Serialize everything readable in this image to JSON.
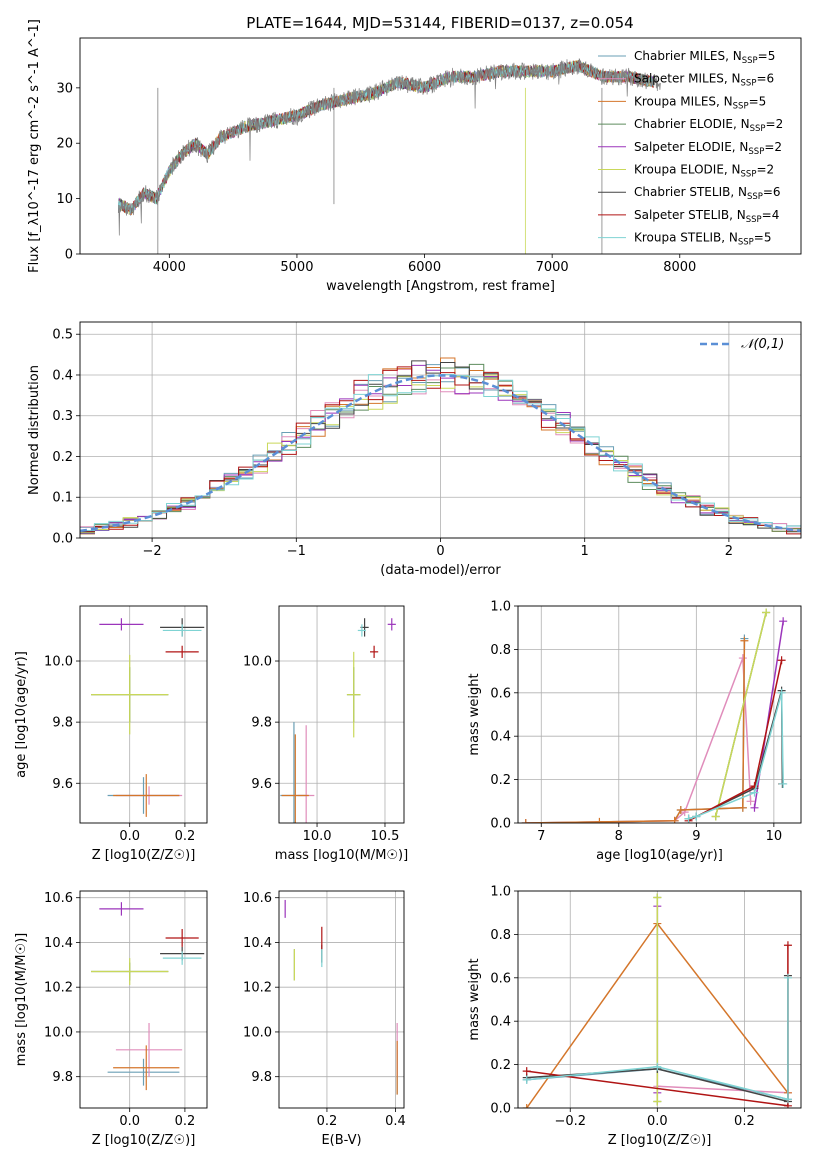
{
  "title": "PLATE=1644, MJD=53144, FIBERID=0137, z=0.054",
  "colors": {
    "Chabrier MILES": "#6a9fb5",
    "Salpeter MILES": "#e08dbb",
    "Kroupa MILES": "#d4762b",
    "Chabrier ELODIE": "#5d8c5d",
    "Salpeter ELODIE": "#9b35bb",
    "Kroupa ELODIE": "#c9d85a",
    "Chabrier STELIB": "#444444",
    "Salpeter STELIB": "#b01414",
    "Kroupa STELIB": "#7fd3d3"
  },
  "chart_data": [
    {
      "id": "spectrum",
      "type": "line",
      "xlabel": "wavelength [Angstrom, rest frame]",
      "ylabel": "Flux [f_λ10^-17 erg cm^-2 s^-1 A^-1]",
      "xlim": [
        3300,
        8950
      ],
      "ylim": [
        0,
        39
      ],
      "xticks": [
        4000,
        5000,
        6000,
        7000,
        8000
      ],
      "yticks": [
        0,
        10,
        20,
        30
      ],
      "legend_loc": "upper-right",
      "observed": {
        "x": [
          3600,
          3700,
          3800,
          3900,
          4000,
          4100,
          4200,
          4300,
          4400,
          4500,
          4600,
          4800,
          5000,
          5200,
          5400,
          5600,
          5800,
          6000,
          6200,
          6400,
          6600,
          6800,
          7000,
          7200,
          7300,
          7400,
          7600,
          7800
        ],
        "y": [
          9,
          8,
          11,
          10,
          15,
          18,
          20,
          18,
          21,
          22,
          23,
          24,
          25,
          27,
          28,
          29,
          31,
          30,
          32,
          32,
          33,
          33,
          33,
          34,
          33,
          32,
          32,
          31
        ]
      },
      "legend": [
        {
          "label": "Chabrier MILES",
          "nssp": "5"
        },
        {
          "label": "Salpeter MILES",
          "nssp": "6"
        },
        {
          "label": "Kroupa MILES",
          "nssp": "5"
        },
        {
          "label": "Chabrier ELODIE",
          "nssp": "2"
        },
        {
          "label": "Salpeter ELODIE",
          "nssp": "2"
        },
        {
          "label": "Kroupa ELODIE",
          "nssp": "2"
        },
        {
          "label": "Chabrier STELIB",
          "nssp": "6"
        },
        {
          "label": "Salpeter STELIB",
          "nssp": "4"
        },
        {
          "label": "Kroupa STELIB",
          "nssp": "5"
        }
      ]
    },
    {
      "id": "residuals",
      "type": "step",
      "xlabel": "(data-model)/error",
      "ylabel": "Normed distribution",
      "xlim": [
        -2.5,
        2.5
      ],
      "ylim": [
        0,
        0.53
      ],
      "xticks": [
        -2,
        -1,
        0,
        1,
        2
      ],
      "yticks": [
        0.0,
        0.1,
        0.2,
        0.3,
        0.4,
        0.5
      ],
      "grid": true,
      "bin_width": 0.1,
      "reference_label": "𝒩(0,1)"
    },
    {
      "id": "age-vs-Z",
      "type": "errorbar",
      "xlabel": "Z [log10(Z/Z☉)]",
      "ylabel": "age [log10(age/yr)]",
      "xlim": [
        -0.18,
        0.28
      ],
      "ylim": [
        9.47,
        10.18
      ],
      "xticks": [
        0.0,
        0.2
      ],
      "yticks": [
        9.6,
        9.8,
        10.0
      ],
      "grid": true,
      "points": [
        {
          "name": "Chabrier MILES",
          "x": 0.05,
          "xerr": 0.13,
          "y": 9.56,
          "yerr": 0.06
        },
        {
          "name": "Salpeter MILES",
          "x": 0.07,
          "xerr": 0.12,
          "y": 9.56,
          "yerr": 0.03
        },
        {
          "name": "Kroupa MILES",
          "x": 0.06,
          "xerr": 0.12,
          "y": 9.56,
          "yerr": 0.07
        },
        {
          "name": "Chabrier ELODIE",
          "x": 0.0,
          "xerr": 0.14,
          "y": 9.89,
          "yerr": 0.09
        },
        {
          "name": "Salpeter ELODIE",
          "x": -0.03,
          "xerr": 0.08,
          "y": 10.12,
          "yerr": 0.02
        },
        {
          "name": "Kroupa ELODIE",
          "x": 0.0,
          "xerr": 0.14,
          "y": 9.89,
          "yerr": 0.13
        },
        {
          "name": "Chabrier STELIB",
          "x": 0.19,
          "xerr": 0.08,
          "y": 10.11,
          "yerr": 0.03
        },
        {
          "name": "Salpeter STELIB",
          "x": 0.19,
          "xerr": 0.06,
          "y": 10.03,
          "yerr": 0.02
        },
        {
          "name": "Kroupa STELIB",
          "x": 0.19,
          "xerr": 0.07,
          "y": 10.1,
          "yerr": 0.02
        }
      ]
    },
    {
      "id": "age-vs-mass",
      "type": "errorbar",
      "xlabel": "mass [log10(M/M☉)]",
      "ylabel": "",
      "xlim": [
        9.72,
        10.64
      ],
      "ylim": [
        9.47,
        10.18
      ],
      "xticks": [
        10.0,
        10.5
      ],
      "yticks": [
        9.6,
        9.8,
        10.0
      ],
      "grid": true,
      "points": [
        {
          "name": "Chabrier MILES",
          "x": 9.83,
          "xerr": 0.1,
          "y": 9.56,
          "yerr": 0.24
        },
        {
          "name": "Salpeter MILES",
          "x": 9.92,
          "xerr": 0.06,
          "y": 9.56,
          "yerr": 0.23
        },
        {
          "name": "Kroupa MILES",
          "x": 9.84,
          "xerr": 0.1,
          "y": 9.56,
          "yerr": 0.2
        },
        {
          "name": "Chabrier ELODIE",
          "x": 10.27,
          "xerr": 0.05,
          "y": 9.89,
          "yerr": 0.09
        },
        {
          "name": "Salpeter ELODIE",
          "x": 10.55,
          "xerr": 0.03,
          "y": 10.12,
          "yerr": 0.02
        },
        {
          "name": "Kroupa ELODIE",
          "x": 10.27,
          "xerr": 0.05,
          "y": 9.89,
          "yerr": 0.14
        },
        {
          "name": "Chabrier STELIB",
          "x": 10.35,
          "xerr": 0.03,
          "y": 10.11,
          "yerr": 0.03
        },
        {
          "name": "Salpeter STELIB",
          "x": 10.42,
          "xerr": 0.03,
          "y": 10.03,
          "yerr": 0.02
        },
        {
          "name": "Kroupa STELIB",
          "x": 10.33,
          "xerr": 0.03,
          "y": 10.1,
          "yerr": 0.02
        }
      ]
    },
    {
      "id": "mass-weight-vs-age",
      "type": "line",
      "xlabel": "age [log10(age/yr)]",
      "ylabel": "mass weight",
      "xlim": [
        6.7,
        10.35
      ],
      "ylim": [
        0,
        1
      ],
      "xticks": [
        7,
        8,
        9,
        10
      ],
      "yticks": [
        0.0,
        0.2,
        0.4,
        0.6,
        0.8,
        1.0
      ],
      "grid": true,
      "series": [
        {
          "name": "Chabrier MILES",
          "x": [
            6.8,
            8.72,
            8.8,
            9.6,
            9.62
          ],
          "y": [
            0.0,
            0.01,
            0.06,
            0.07,
            0.85
          ]
        },
        {
          "name": "Salpeter MILES",
          "x": [
            6.8,
            8.72,
            8.85,
            9.6,
            9.7
          ],
          "y": [
            0.0,
            0.01,
            0.05,
            0.76,
            0.1
          ]
        },
        {
          "name": "Kroupa MILES",
          "x": [
            6.8,
            7.75,
            8.72,
            8.8,
            9.6,
            9.62
          ],
          "y": [
            0.0,
            0.005,
            0.01,
            0.06,
            0.07,
            0.84
          ]
        },
        {
          "name": "Chabrier ELODIE",
          "x": [
            9.25,
            9.9
          ],
          "y": [
            0.03,
            0.97
          ]
        },
        {
          "name": "Salpeter ELODIE",
          "x": [
            9.75,
            10.12
          ],
          "y": [
            0.07,
            0.93
          ]
        },
        {
          "name": "Kroupa ELODIE",
          "x": [
            9.25,
            9.9
          ],
          "y": [
            0.03,
            0.97
          ]
        },
        {
          "name": "Chabrier STELIB",
          "x": [
            8.9,
            9.0,
            9.75,
            10.1,
            10.11
          ],
          "y": [
            0.02,
            0.03,
            0.16,
            0.61,
            0.18
          ]
        },
        {
          "name": "Salpeter STELIB",
          "x": [
            8.9,
            9.75,
            10.1
          ],
          "y": [
            0.01,
            0.17,
            0.75
          ]
        },
        {
          "name": "Kroupa STELIB",
          "x": [
            8.9,
            9.0,
            9.75,
            10.1,
            10.12
          ],
          "y": [
            0.02,
            0.03,
            0.14,
            0.6,
            0.18
          ]
        }
      ]
    },
    {
      "id": "mass-vs-Z",
      "type": "errorbar",
      "xlabel": "Z [log10(Z/Z☉)]",
      "ylabel": "mass [log10(M/M☉)]",
      "xlim": [
        -0.18,
        0.28
      ],
      "ylim": [
        9.66,
        10.63
      ],
      "xticks": [
        0.0,
        0.2
      ],
      "yticks": [
        9.8,
        10.0,
        10.2,
        10.4,
        10.6
      ],
      "grid": true,
      "points": [
        {
          "name": "Chabrier MILES",
          "x": 0.05,
          "xerr": 0.13,
          "y": 9.82,
          "yerr": 0.06
        },
        {
          "name": "Salpeter MILES",
          "x": 0.07,
          "xerr": 0.12,
          "y": 9.92,
          "yerr": 0.12
        },
        {
          "name": "Kroupa MILES",
          "x": 0.06,
          "xerr": 0.12,
          "y": 9.84,
          "yerr": 0.1
        },
        {
          "name": "Chabrier ELODIE",
          "x": 0.0,
          "xerr": 0.14,
          "y": 10.27,
          "yerr": 0.04
        },
        {
          "name": "Salpeter ELODIE",
          "x": -0.03,
          "xerr": 0.08,
          "y": 10.55,
          "yerr": 0.03
        },
        {
          "name": "Kroupa ELODIE",
          "x": 0.0,
          "xerr": 0.14,
          "y": 10.27,
          "yerr": 0.06
        },
        {
          "name": "Chabrier STELIB",
          "x": 0.19,
          "xerr": 0.08,
          "y": 10.35,
          "yerr": 0.03
        },
        {
          "name": "Salpeter STELIB",
          "x": 0.19,
          "xerr": 0.06,
          "y": 10.42,
          "yerr": 0.04
        },
        {
          "name": "Kroupa STELIB",
          "x": 0.19,
          "xerr": 0.07,
          "y": 10.33,
          "yerr": 0.03
        }
      ]
    },
    {
      "id": "mass-vs-ebv",
      "type": "errorbar",
      "xlabel": "E(B-V)",
      "ylabel": "",
      "xlim": [
        0.06,
        0.425
      ],
      "ylim": [
        9.66,
        10.63
      ],
      "xticks": [
        0.2,
        0.4
      ],
      "yticks": [
        9.8,
        10.0,
        10.2,
        10.4,
        10.6
      ],
      "grid": true,
      "points": [
        {
          "name": "Chabrier MILES",
          "x": 0.405,
          "xerr": 0,
          "y": 9.82,
          "yerr": 0.1
        },
        {
          "name": "Salpeter MILES",
          "x": 0.405,
          "xerr": 0,
          "y": 9.92,
          "yerr": 0.12
        },
        {
          "name": "Kroupa MILES",
          "x": 0.405,
          "xerr": 0,
          "y": 9.84,
          "yerr": 0.12
        },
        {
          "name": "Chabrier ELODIE",
          "x": 0.105,
          "xerr": 0,
          "y": 10.3,
          "yerr": 0.07
        },
        {
          "name": "Salpeter ELODIE",
          "x": 0.078,
          "xerr": 0,
          "y": 10.55,
          "yerr": 0.04
        },
        {
          "name": "Kroupa ELODIE",
          "x": 0.105,
          "xerr": 0,
          "y": 10.3,
          "yerr": 0.07
        },
        {
          "name": "Chabrier STELIB",
          "x": 0.185,
          "xerr": 0,
          "y": 10.35,
          "yerr": 0.04
        },
        {
          "name": "Salpeter STELIB",
          "x": 0.185,
          "xerr": 0,
          "y": 10.42,
          "yerr": 0.05
        },
        {
          "name": "Kroupa STELIB",
          "x": 0.185,
          "xerr": 0,
          "y": 10.33,
          "yerr": 0.04
        }
      ]
    },
    {
      "id": "mass-weight-vs-Z",
      "type": "line",
      "xlabel": "Z [log10(Z/Z☉)]",
      "ylabel": "mass weight",
      "xlim": [
        -0.32,
        0.33
      ],
      "ylim": [
        0,
        1
      ],
      "xticks": [
        -0.2,
        0.0,
        0.2
      ],
      "yticks": [
        0.0,
        0.2,
        0.4,
        0.6,
        0.8,
        1.0
      ],
      "grid": true,
      "series": [
        {
          "name": "Chabrier MILES",
          "x": [
            -0.3,
            0.0,
            0.3
          ],
          "y": [
            0.13,
            0.18,
            0.04
          ]
        },
        {
          "name": "Salpeter MILES",
          "x": [
            0.0,
            0.3
          ],
          "y": [
            0.1,
            0.07
          ]
        },
        {
          "name": "Kroupa MILES",
          "x": [
            -0.3,
            0.0,
            0.3
          ],
          "y": [
            0.0,
            0.85,
            0.07
          ]
        },
        {
          "name": "Chabrier ELODIE",
          "x": [
            0.0,
            0.0
          ],
          "y": [
            0.03,
            0.97
          ]
        },
        {
          "name": "Salpeter ELODIE",
          "x": [
            0.0,
            0.0
          ],
          "y": [
            0.07,
            0.93
          ]
        },
        {
          "name": "Kroupa ELODIE",
          "x": [
            0.0,
            0.0
          ],
          "y": [
            0.03,
            0.97
          ]
        },
        {
          "name": "Chabrier STELIB",
          "x": [
            -0.3,
            0.0,
            0.3,
            0.3
          ],
          "y": [
            0.14,
            0.18,
            0.03,
            0.61
          ]
        },
        {
          "name": "Salpeter STELIB",
          "x": [
            -0.3,
            0.3,
            0.3
          ],
          "y": [
            0.17,
            0.01,
            0.75
          ]
        },
        {
          "name": "Kroupa STELIB",
          "x": [
            -0.3,
            0.0,
            0.3,
            0.3
          ],
          "y": [
            0.13,
            0.19,
            0.04,
            0.6
          ]
        }
      ]
    }
  ]
}
